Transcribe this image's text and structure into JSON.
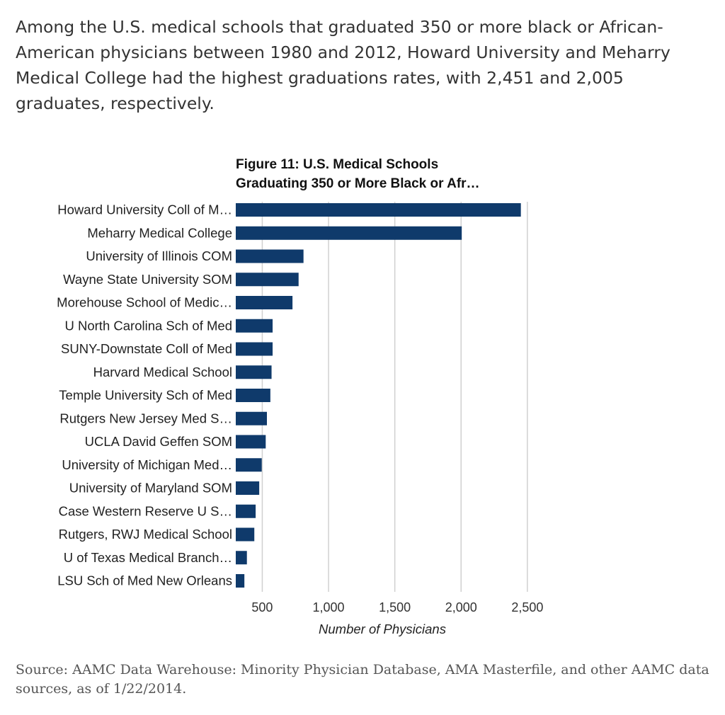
{
  "intro": "Among the U.S. medical schools that graduated 350 or more black or African-American physicians between 1980 and 2012, Howard University and Meharry Medical College had the highest graduations rates, with 2,451 and 2,005 graduates, respectively.",
  "source": "Source: AAMC Data Warehouse: Minority Physician Database, AMA Masterfile, and other AAMC data sources, as of 1/22/2014.",
  "chart_data": {
    "type": "bar",
    "orientation": "horizontal",
    "title": [
      "Figure 11: U.S. Medical Schools",
      "Graduating 350 or More Black or Afr…"
    ],
    "xlabel": "Number of Physicians",
    "ylabel": "",
    "xlim": [
      300,
      2600
    ],
    "xticks": [
      500,
      1000,
      1500,
      2000,
      2500
    ],
    "xtick_labels": [
      "500",
      "1,000",
      "1,500",
      "2,000",
      "2,500"
    ],
    "grid": true,
    "bar_color": "#0f3a6b",
    "categories": [
      "Howard University Coll of M…",
      "Meharry Medical College",
      "University of Illinois COM",
      "Wayne State University SOM",
      "Morehouse School of Medic…",
      "U North Carolina Sch of Med",
      "SUNY-Downstate Coll of Med",
      "Harvard Medical School",
      "Temple University Sch of Med",
      "Rutgers New Jersey Med S…",
      "UCLA David Geffen SOM",
      "University of Michigan Med…",
      "University of Maryland SOM",
      "Case Western Reserve U S…",
      "Rutgers, RWJ Medical School",
      "U of Texas Medical Branch…",
      "LSU Sch of Med New Orleans"
    ],
    "values": [
      2451,
      2005,
      811,
      774,
      728,
      578,
      578,
      570,
      561,
      535,
      526,
      496,
      477,
      450,
      440,
      384,
      365
    ]
  }
}
